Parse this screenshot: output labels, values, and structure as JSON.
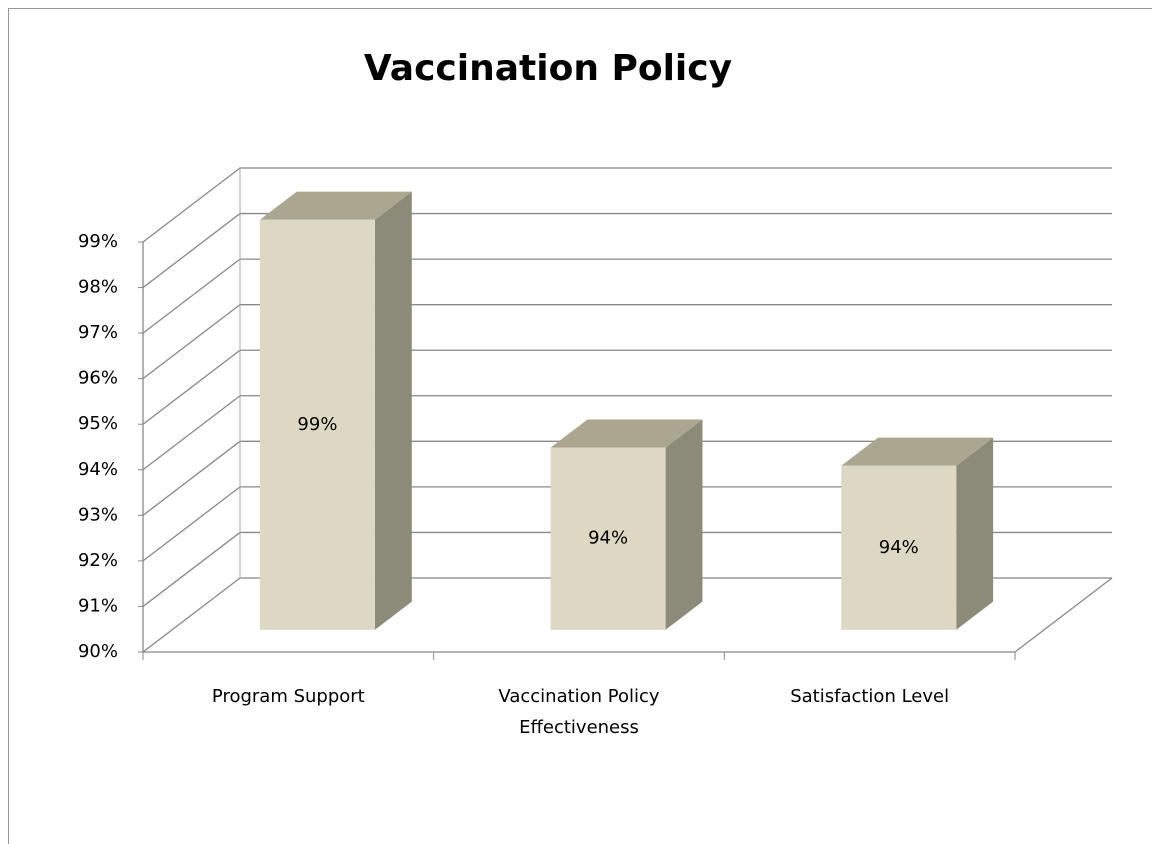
{
  "chart_data": {
    "type": "bar3d",
    "title": "Vaccination Policy",
    "categories": [
      "Program Support",
      "Vaccination Policy Effectiveness",
      "Satisfaction Level"
    ],
    "values": [
      99.0,
      94.0,
      93.6
    ],
    "value_labels": [
      "99%",
      "94%",
      "94%"
    ],
    "color": "#ddd8c4",
    "ylim": [
      90,
      99
    ],
    "yticks": [
      {
        "value": 90,
        "label": "90%"
      },
      {
        "value": 91,
        "label": "91%"
      },
      {
        "value": 92,
        "label": "92%"
      },
      {
        "value": 93,
        "label": "93%"
      },
      {
        "value": 94,
        "label": "94%"
      },
      {
        "value": 95,
        "label": "95%"
      },
      {
        "value": 96,
        "label": "96%"
      },
      {
        "value": 97,
        "label": "97%"
      },
      {
        "value": 98,
        "label": "98%"
      },
      {
        "value": 99,
        "label": "99%"
      }
    ],
    "grid": true
  }
}
